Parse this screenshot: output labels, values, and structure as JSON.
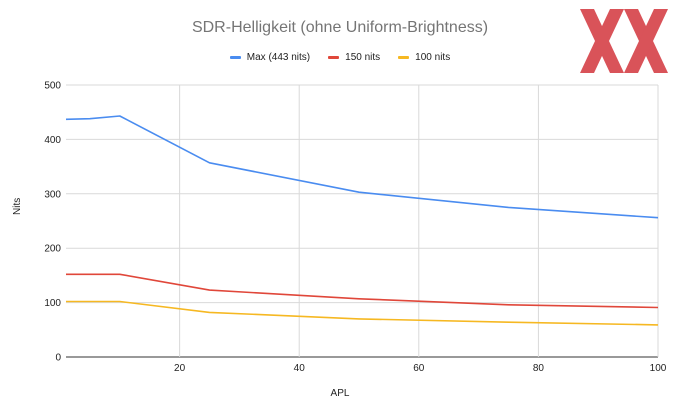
{
  "chart_data": {
    "type": "line",
    "title": "SDR-Helligkeit (ohne Uniform-Brightness)",
    "xlabel": "APL",
    "ylabel": "Nits",
    "xlim": [
      1,
      100
    ],
    "ylim": [
      0,
      500
    ],
    "xticks": [
      20,
      40,
      60,
      80,
      100
    ],
    "yticks": [
      0,
      100,
      200,
      300,
      400,
      500
    ],
    "grid": true,
    "legend_position": "top",
    "x": [
      1,
      5,
      10,
      25,
      50,
      75,
      100
    ],
    "series": [
      {
        "name": "Max (443 nits)",
        "color": "#4a8cf0",
        "values": [
          437,
          438,
          443,
          357,
          303,
          275,
          256
        ]
      },
      {
        "name": "150 nits",
        "color": "#e0473a",
        "values": [
          152,
          152,
          152,
          123,
          107,
          96,
          91
        ]
      },
      {
        "name": "100 nits",
        "color": "#f6b822",
        "values": [
          102,
          102,
          102,
          82,
          70,
          64,
          59
        ]
      }
    ]
  },
  "logo": {
    "name": "xx-logo",
    "color": "#d6454c"
  }
}
